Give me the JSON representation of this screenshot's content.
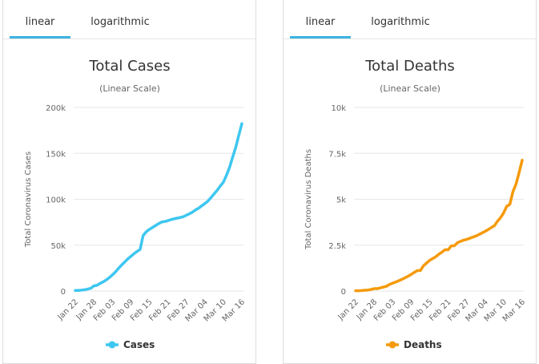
{
  "tabs": {
    "linear": "linear",
    "logarithmic": "logarithmic"
  },
  "panels": [
    {
      "active_tab": "linear",
      "color": "#3dc7f0"
    },
    {
      "active_tab": "linear",
      "color": "#f59a0c"
    }
  ],
  "chart_data": [
    {
      "type": "line",
      "title": "Total Cases",
      "subtitle": "(Linear Scale)",
      "xlabel": "",
      "ylabel": "Total Coronavirus Cases",
      "x_tick_labels": [
        "Jan 22",
        "Jan 28",
        "Feb 03",
        "Feb 09",
        "Feb 15",
        "Feb 21",
        "Feb 27",
        "Mar 04",
        "Mar 10",
        "Mar 16"
      ],
      "y_tick_labels": [
        "0",
        "50k",
        "100k",
        "150k",
        "200k"
      ],
      "ylim": [
        0,
        200000
      ],
      "grid": true,
      "legend_position": "bottom",
      "series": [
        {
          "name": "Cases",
          "color": "#3dc7f0",
          "values": [
            580,
            650,
            940,
            1430,
            2120,
            2930,
            5580,
            6170,
            8240,
            9930,
            12000,
            14600,
            17500,
            20700,
            24600,
            28300,
            31500,
            34900,
            37600,
            40600,
            43100,
            45200,
            60400,
            64500,
            67100,
            69200,
            71300,
            73400,
            75200,
            75700,
            76700,
            77800,
            78600,
            79400,
            80100,
            81000,
            82600,
            84100,
            86000,
            88400,
            90300,
            92800,
            95300,
            98000,
            101800,
            105800,
            109800,
            114300,
            118600,
            125900,
            134600,
            145500,
            156400,
            169400,
            182400
          ]
        }
      ]
    },
    {
      "type": "line",
      "title": "Total Deaths",
      "subtitle": "(Linear Scale)",
      "xlabel": "",
      "ylabel": "Total Coronavirus Deaths",
      "x_tick_labels": [
        "Jan 22",
        "Jan 28",
        "Feb 03",
        "Feb 09",
        "Feb 15",
        "Feb 21",
        "Feb 27",
        "Mar 04",
        "Mar 10",
        "Mar 16"
      ],
      "y_tick_labels": [
        "0",
        "2.5k",
        "5k",
        "7.5k",
        "10k"
      ],
      "ylim": [
        0,
        10000
      ],
      "grid": true,
      "legend_position": "bottom",
      "series": [
        {
          "name": "Deaths",
          "color": "#f59a0c",
          "values": [
            17,
            18,
            26,
            42,
            56,
            82,
            131,
            133,
            171,
            213,
            259,
            362,
            426,
            492,
            564,
            634,
            719,
            806,
            906,
            1013,
            1113,
            1118,
            1371,
            1523,
            1666,
            1770,
            1868,
            2007,
            2122,
            2247,
            2251,
            2458,
            2469,
            2629,
            2708,
            2770,
            2814,
            2872,
            2941,
            2996,
            3085,
            3160,
            3254,
            3348,
            3460,
            3558,
            3803,
            3996,
            4262,
            4615,
            4720,
            5404,
            5819,
            6440,
            7126
          ]
        }
      ]
    }
  ]
}
